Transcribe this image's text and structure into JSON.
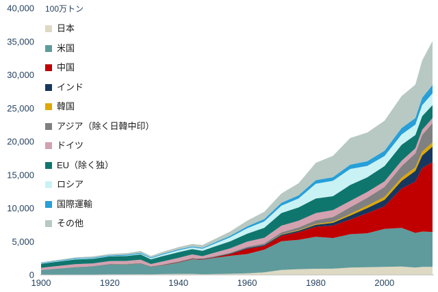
{
  "chart_data": {
    "type": "area",
    "stacked": true,
    "title": "",
    "unit_label": "100万トン",
    "legend_position": "upper-left-inside-plot",
    "grid": false,
    "x": [
      1900,
      1905,
      1910,
      1915,
      1920,
      1925,
      1929,
      1932,
      1935,
      1940,
      1944,
      1947,
      1950,
      1955,
      1960,
      1965,
      1970,
      1975,
      1980,
      1985,
      1990,
      1995,
      2000,
      2005,
      2009,
      2011,
      2014
    ],
    "series": [
      {
        "id": "japan",
        "name": "日本",
        "color": "#ddd9c3",
        "values": [
          20,
          30,
          40,
          50,
          70,
          80,
          90,
          85,
          110,
          150,
          150,
          90,
          110,
          160,
          230,
          380,
          750,
          860,
          920,
          930,
          1100,
          1150,
          1200,
          1250,
          1100,
          1200,
          1200
        ]
      },
      {
        "id": "usa",
        "name": "米国",
        "color": "#5f9b9c",
        "values": [
          700,
          900,
          1100,
          1200,
          1500,
          1500,
          1600,
          1100,
          1300,
          1700,
          2200,
          2200,
          2400,
          2700,
          2900,
          3400,
          4300,
          4400,
          4800,
          4600,
          5000,
          5100,
          5700,
          5800,
          5200,
          5300,
          5250
        ]
      },
      {
        "id": "china",
        "name": "中国",
        "color": "#c00000",
        "values": [
          0,
          5,
          10,
          15,
          20,
          25,
          30,
          30,
          40,
          60,
          60,
          60,
          80,
          250,
          780,
          550,
          800,
          1150,
          1500,
          1850,
          2200,
          3000,
          3400,
          5900,
          7700,
          9500,
          10500
        ]
      },
      {
        "id": "india",
        "name": "インド",
        "color": "#17375e",
        "values": [
          5,
          8,
          12,
          15,
          18,
          20,
          25,
          25,
          30,
          35,
          40,
          45,
          60,
          75,
          110,
          140,
          180,
          220,
          290,
          430,
          600,
          770,
          950,
          1150,
          1600,
          1900,
          2300
        ]
      },
      {
        "id": "korea",
        "name": "韓国",
        "color": "#dfa700",
        "values": [
          0,
          0,
          0,
          0,
          5,
          5,
          8,
          8,
          10,
          12,
          12,
          10,
          10,
          12,
          15,
          25,
          55,
          90,
          130,
          170,
          240,
          360,
          440,
          470,
          530,
          590,
          620
        ]
      },
      {
        "id": "asia-other",
        "name": "アジア（除く日韓中印）",
        "color": "#808080",
        "values": [
          10,
          12,
          15,
          20,
          25,
          30,
          35,
          35,
          40,
          50,
          50,
          60,
          100,
          130,
          170,
          220,
          300,
          400,
          550,
          700,
          1000,
          1200,
          1500,
          1750,
          2100,
          2500,
          2900
        ]
      },
      {
        "id": "germany",
        "name": "ドイツ",
        "color": "#d3a1b0",
        "values": [
          330,
          390,
          440,
          420,
          440,
          440,
          490,
          350,
          440,
          550,
          570,
          350,
          500,
          650,
          780,
          850,
          1000,
          1000,
          1080,
          1030,
          950,
          870,
          830,
          800,
          750,
          780,
          760
        ]
      },
      {
        "id": "eu-other",
        "name": "EU（除く独）",
        "color": "#0f766e",
        "values": [
          600,
          650,
          700,
          700,
          700,
          750,
          800,
          700,
          800,
          850,
          800,
          800,
          900,
          1050,
          1200,
          1500,
          1900,
          2000,
          2200,
          2100,
          2400,
          2200,
          2300,
          2400,
          2000,
          2050,
          1950
        ]
      },
      {
        "id": "russia",
        "name": "ロシア",
        "color": "#c9f2f5",
        "values": [
          50,
          60,
          70,
          80,
          40,
          60,
          100,
          150,
          200,
          280,
          250,
          300,
          400,
          600,
          800,
          950,
          1100,
          1350,
          2200,
          2300,
          2400,
          1700,
          1500,
          1550,
          1550,
          1650,
          1750
        ]
      },
      {
        "id": "intl-transport",
        "name": "国際運輸",
        "color": "#279fd8",
        "values": [
          80,
          90,
          110,
          100,
          120,
          130,
          140,
          120,
          130,
          130,
          120,
          150,
          170,
          220,
          290,
          350,
          430,
          470,
          540,
          550,
          630,
          700,
          800,
          950,
          1000,
          1100,
          1250
        ]
      },
      {
        "id": "others",
        "name": "その他",
        "color": "#b7c9c2",
        "values": [
          100,
          120,
          150,
          170,
          200,
          230,
          270,
          250,
          290,
          350,
          380,
          420,
          500,
          650,
          850,
          1100,
          1400,
          1800,
          2600,
          3200,
          4000,
          4300,
          4500,
          4800,
          5000,
          5600,
          6600
        ]
      }
    ],
    "y_axis": {
      "min": 0,
      "max": 40000,
      "step": 5000,
      "tick_labels": [
        "0",
        "5,000",
        "10,000",
        "15,000",
        "20,000",
        "25,000",
        "30,000",
        "35,000",
        "40,000"
      ]
    },
    "x_axis": {
      "min": 1900,
      "max": 2014,
      "tick_years": [
        1900,
        1920,
        1940,
        1960,
        1980,
        2000
      ],
      "tick_labels": [
        "1900",
        "1920",
        "1940",
        "1960",
        "1980",
        "2000"
      ]
    }
  },
  "colors": {
    "axis_text": "#24415f",
    "legend_text": "#1a1a1a",
    "axis_line": "#bfbfbf",
    "background": "#ffffff"
  }
}
